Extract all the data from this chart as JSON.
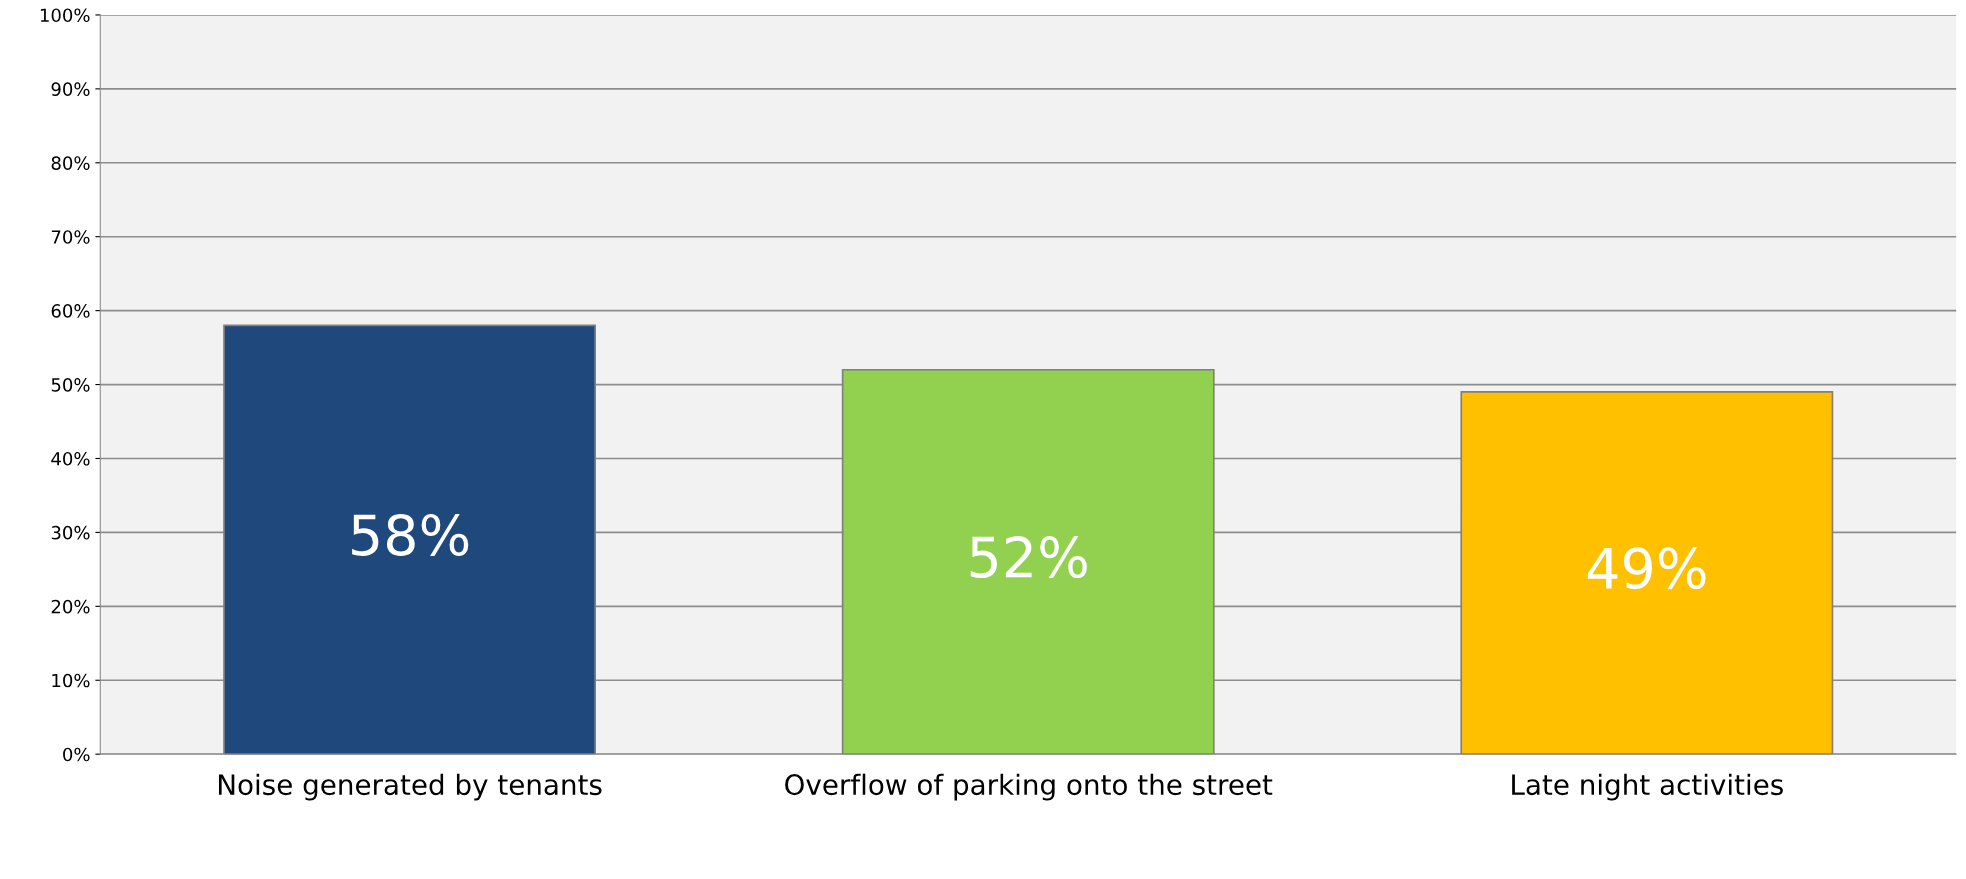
{
  "chart_data": {
    "type": "bar",
    "categories": [
      "Noise generated by tenants",
      "Overflow of parking onto the street",
      "Late night activities"
    ],
    "values": [
      58,
      52,
      49
    ],
    "colors": [
      "#1f497d",
      "#92d050",
      "#ffc000"
    ],
    "value_labels": [
      "58%",
      "52%",
      "49%"
    ],
    "ylim": [
      0,
      100
    ],
    "yticks": [
      {
        "value": 0,
        "label": "0%"
      },
      {
        "value": 10,
        "label": "10%"
      },
      {
        "value": 20,
        "label": "20%"
      },
      {
        "value": 30,
        "label": "30%"
      },
      {
        "value": 40,
        "label": "40%"
      },
      {
        "value": 50,
        "label": "50%"
      },
      {
        "value": 60,
        "label": "60%"
      },
      {
        "value": 70,
        "label": "70%"
      },
      {
        "value": 80,
        "label": "80%"
      },
      {
        "value": 90,
        "label": "90%"
      },
      {
        "value": 100,
        "label": "100%"
      }
    ],
    "grid": "y",
    "legend": false
  }
}
